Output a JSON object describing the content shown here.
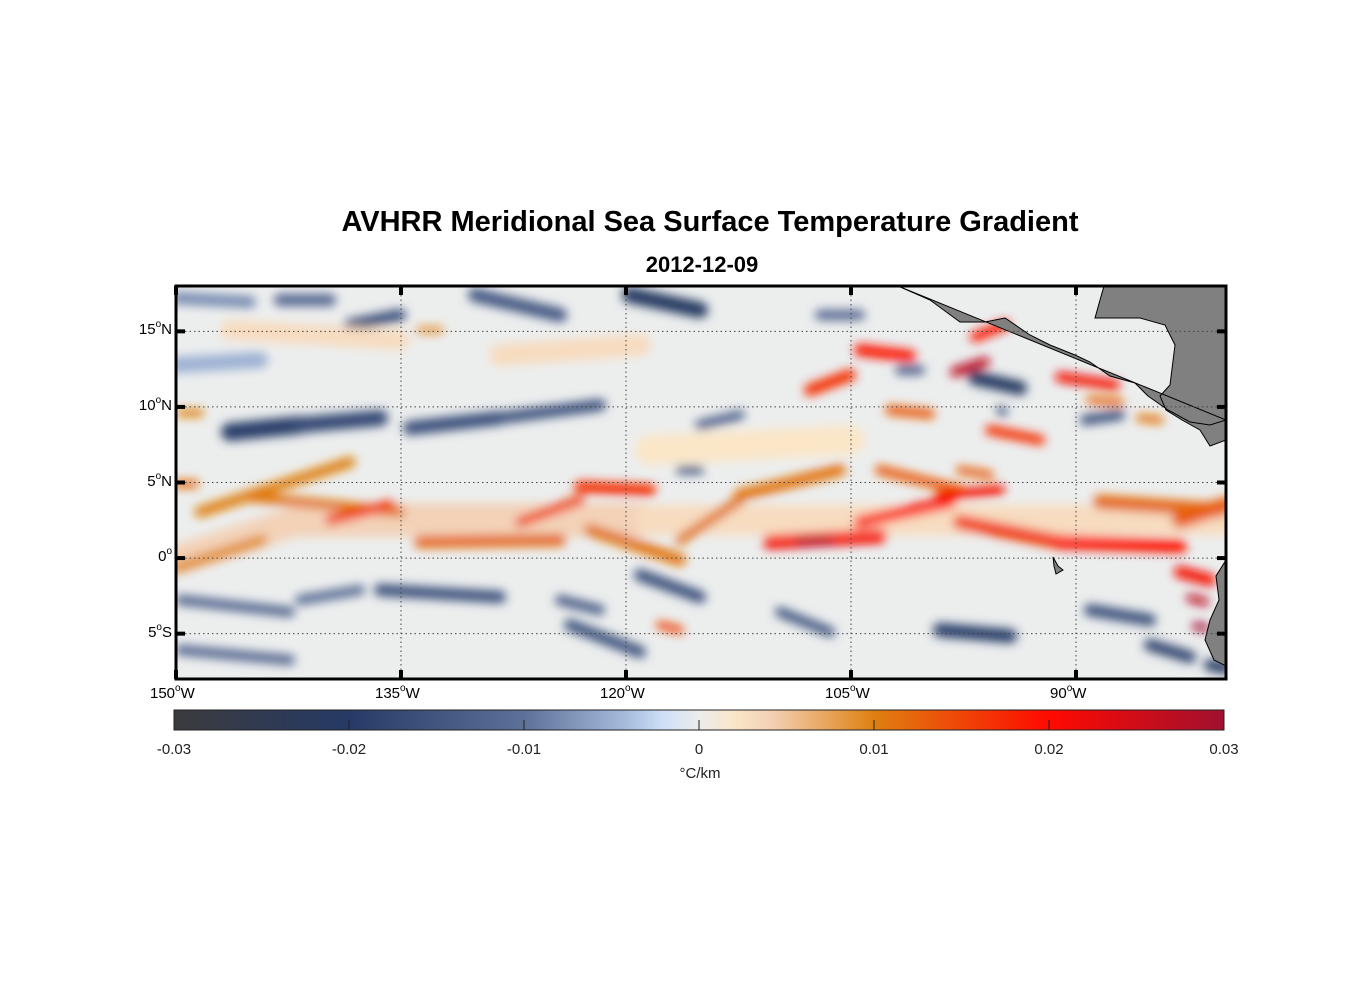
{
  "chart_data": {
    "type": "heatmap",
    "title": "AVHRR Meridional Sea Surface Temperature Gradient",
    "subtitle": "2012-12-09",
    "deg_symbol": "o",
    "lon_range": [
      -150,
      -80
    ],
    "lat_range": [
      -8,
      18
    ],
    "lon_ticks": [
      {
        "value": -150,
        "num": "150",
        "hemi": "W"
      },
      {
        "value": -135,
        "num": "135",
        "hemi": "W"
      },
      {
        "value": -120,
        "num": "120",
        "hemi": "W"
      },
      {
        "value": -105,
        "num": "105",
        "hemi": "W"
      },
      {
        "value": -90,
        "num": "90",
        "hemi": "W"
      }
    ],
    "lat_ticks": [
      {
        "value": 15,
        "num": "15",
        "hemi": "N"
      },
      {
        "value": 10,
        "num": "10",
        "hemi": "N"
      },
      {
        "value": 5,
        "num": "5",
        "hemi": "N"
      },
      {
        "value": 0,
        "num": "0",
        "hemi": ""
      },
      {
        "value": -5,
        "num": "5",
        "hemi": "S"
      }
    ],
    "grid": "dotted",
    "colorbar": {
      "range": [
        -0.03,
        0.03
      ],
      "ticks": [
        "-0.03",
        "-0.02",
        "-0.01",
        "0",
        "0.01",
        "0.02",
        "0.03"
      ],
      "tick_values": [
        -0.03,
        -0.02,
        -0.01,
        0,
        0.01,
        0.02,
        0.03
      ],
      "label": "°C/km",
      "stops": [
        [
          -0.03,
          "#3b3b3d"
        ],
        [
          -0.02,
          "#253a66"
        ],
        [
          -0.01,
          "#5d7098"
        ],
        [
          -0.004,
          "#a9bedf"
        ],
        [
          -0.002,
          "#cfe0f8"
        ],
        [
          0,
          "#ececec"
        ],
        [
          0.002,
          "#fbe6c8"
        ],
        [
          0.004,
          "#f3d2b8"
        ],
        [
          0.01,
          "#df8010"
        ],
        [
          0.02,
          "#ff0a00"
        ],
        [
          0.03,
          "#a01030"
        ]
      ]
    },
    "land_color": "#808080"
  }
}
